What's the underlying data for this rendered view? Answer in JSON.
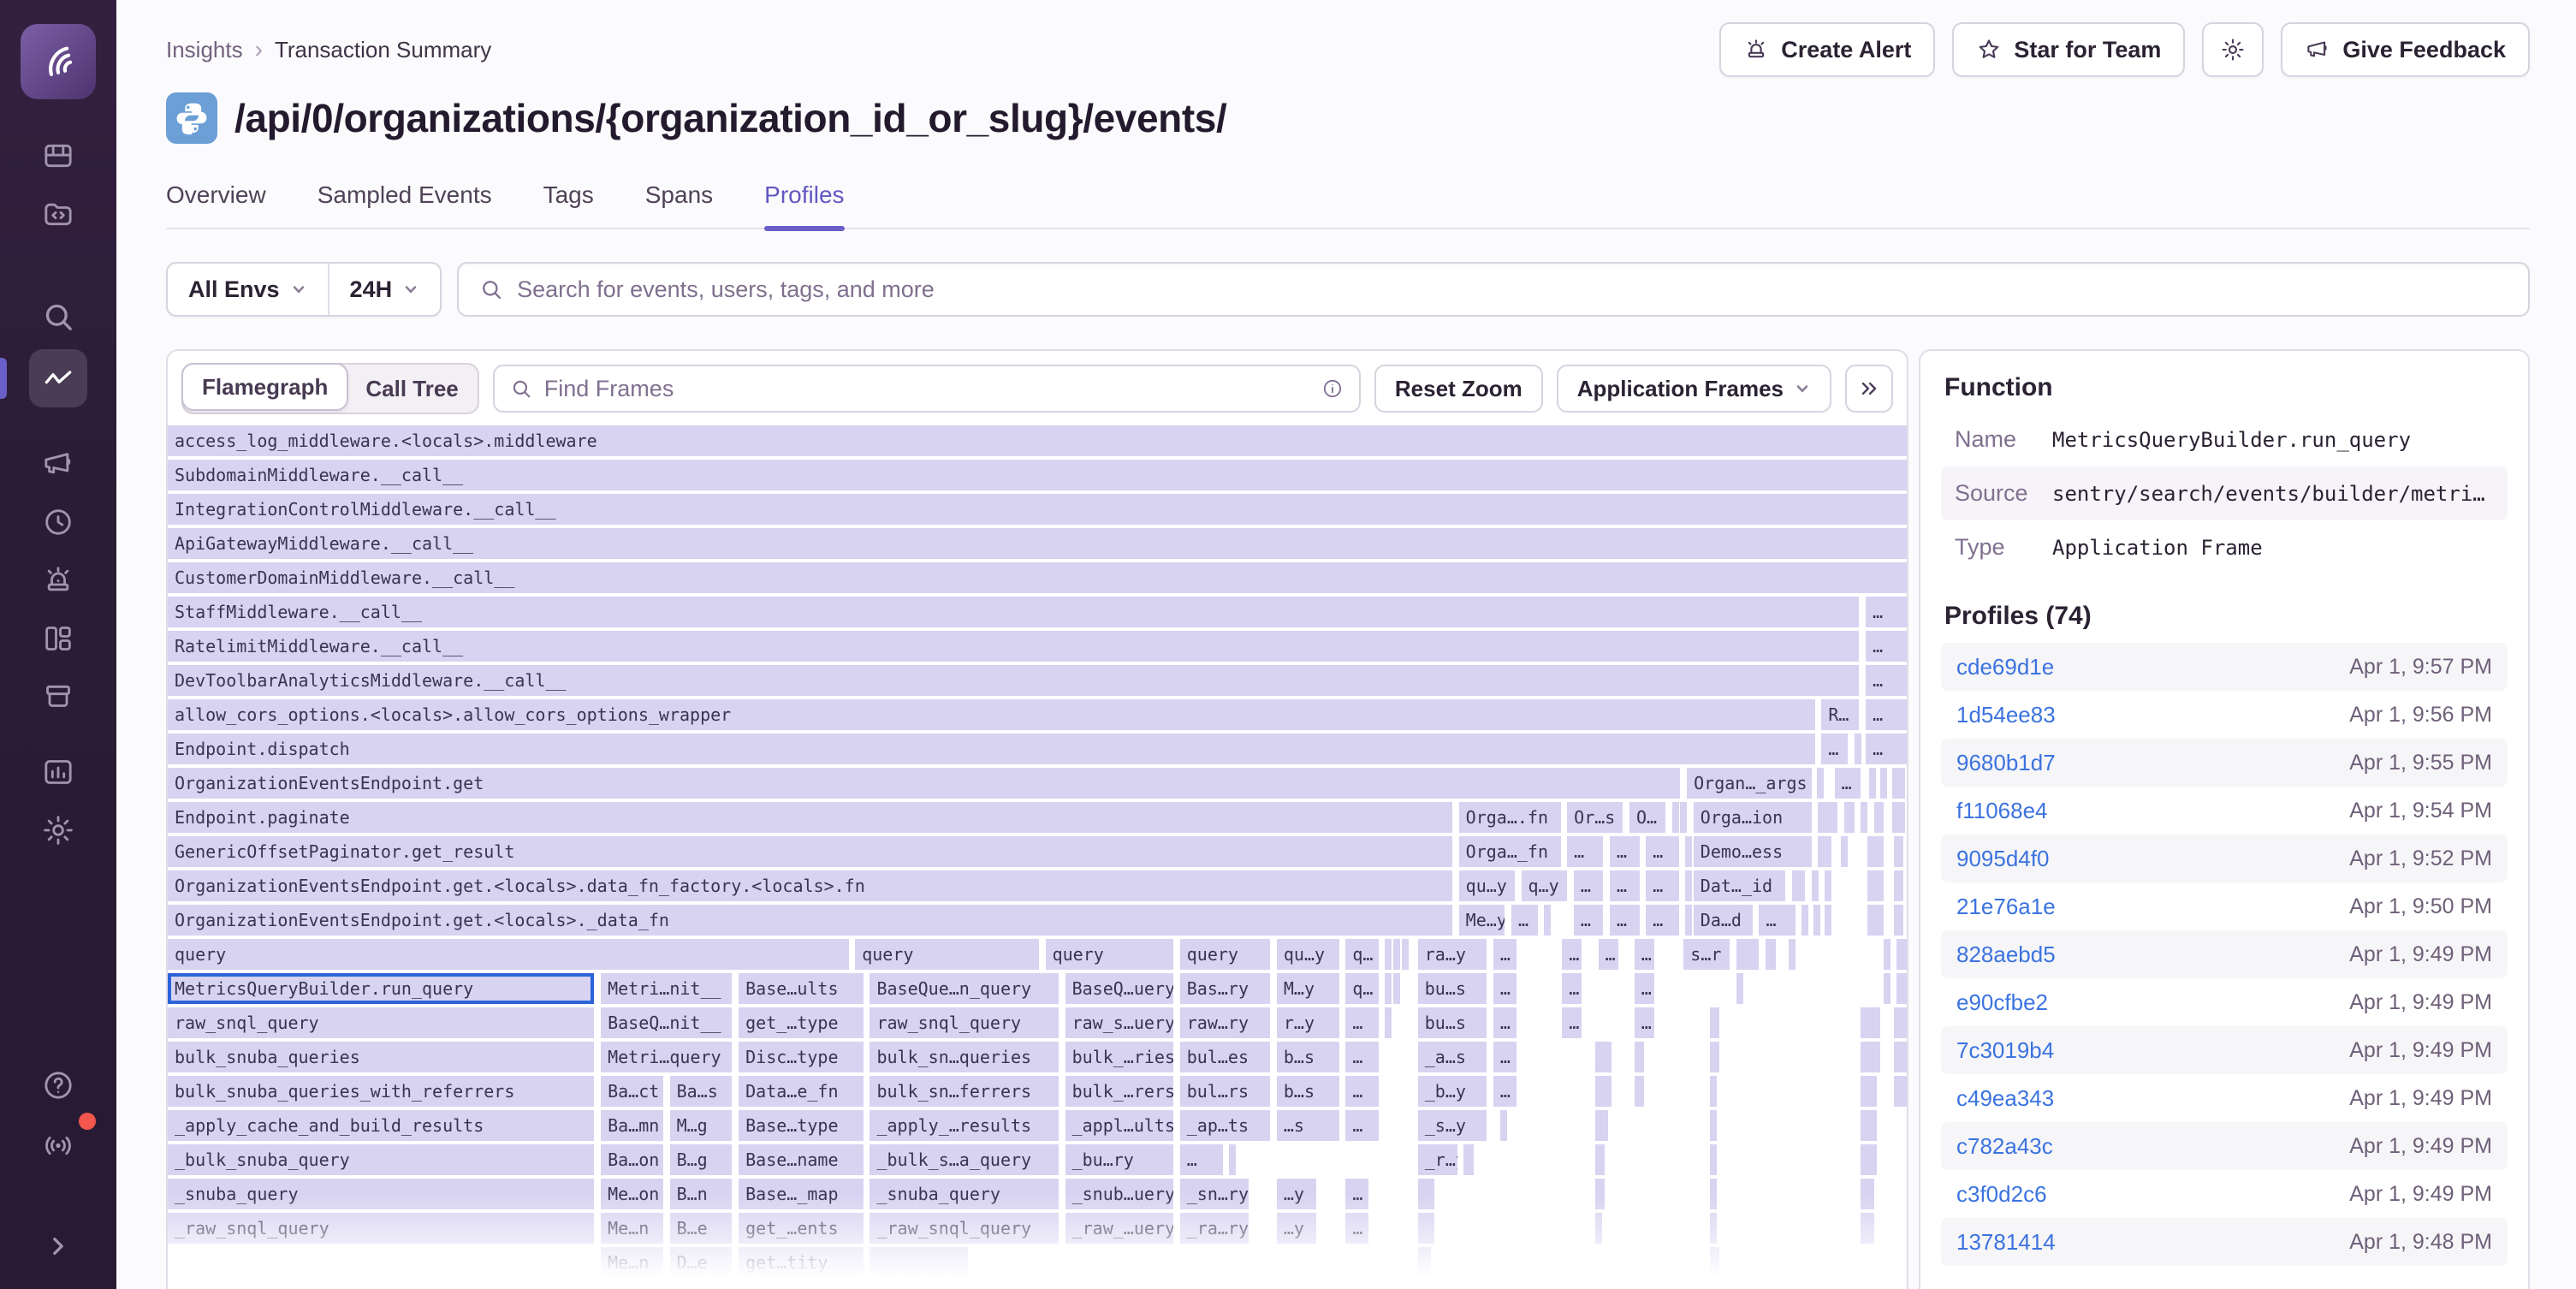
{
  "sidebar": {
    "items": [
      {
        "icon": "issues"
      },
      {
        "icon": "explore"
      },
      {
        "icon": "search"
      },
      {
        "icon": "insights",
        "active": true
      },
      {
        "icon": "feedback"
      },
      {
        "icon": "replays"
      },
      {
        "icon": "alerts"
      },
      {
        "icon": "dashboards"
      },
      {
        "icon": "releases"
      },
      {
        "icon": "stats"
      },
      {
        "icon": "settings"
      }
    ],
    "bottom": [
      {
        "icon": "help"
      },
      {
        "icon": "broadcast",
        "badge": true
      },
      {
        "icon": "expand"
      }
    ]
  },
  "header": {
    "breadcrumb": [
      "Insights",
      "Transaction Summary"
    ],
    "title": "/api/0/organizations/{organization_id_or_slug}/events/",
    "actions": [
      {
        "label": "Create Alert",
        "icon": "siren"
      },
      {
        "label": "Star for Team",
        "icon": "star"
      },
      {
        "label": "",
        "icon": "gear"
      },
      {
        "label": "Give Feedback",
        "icon": "megaphone"
      }
    ]
  },
  "tabs": [
    "Overview",
    "Sampled Events",
    "Tags",
    "Spans",
    "Profiles"
  ],
  "active_tab": "Profiles",
  "filters": {
    "env": "All Envs",
    "period": "24H",
    "search_placeholder": "Search for events, users, tags, and more"
  },
  "toolbar": {
    "view_flamegraph": "Flamegraph",
    "view_calltree": "Call Tree",
    "find_placeholder": "Find Frames",
    "reset_zoom": "Reset Zoom",
    "frames_filter": "Application Frames"
  },
  "panel": {
    "title": "Function",
    "name_label": "Name",
    "name": "MetricsQueryBuilder.run_query",
    "source_label": "Source",
    "source": "sentry/search/events/builder/metri…",
    "type_label": "Type",
    "type": "Application Frame",
    "profiles_title": "Profiles (74)",
    "profiles": [
      {
        "id": "cde69d1e",
        "time": "Apr 1, 9:57 PM"
      },
      {
        "id": "1d54ee83",
        "time": "Apr 1, 9:56 PM"
      },
      {
        "id": "9680b1d7",
        "time": "Apr 1, 9:55 PM"
      },
      {
        "id": "f11068e4",
        "time": "Apr 1, 9:54 PM"
      },
      {
        "id": "9095d4f0",
        "time": "Apr 1, 9:52 PM"
      },
      {
        "id": "21e76a1e",
        "time": "Apr 1, 9:50 PM"
      },
      {
        "id": "828aebd5",
        "time": "Apr 1, 9:49 PM"
      },
      {
        "id": "e90cfbe2",
        "time": "Apr 1, 9:49 PM"
      },
      {
        "id": "7c3019b4",
        "time": "Apr 1, 9:49 PM"
      },
      {
        "id": "c49ea343",
        "time": "Apr 1, 9:49 PM"
      },
      {
        "id": "c782a43c",
        "time": "Apr 1, 9:49 PM"
      },
      {
        "id": "c3f0d2c6",
        "time": "Apr 1, 9:49 PM"
      },
      {
        "id": "13781414",
        "time": "Apr 1, 9:48 PM"
      }
    ]
  },
  "colors": {
    "accent_purple": "#6a5fc8",
    "frame_fill": "#d7d3f1",
    "selected_frame_border": "#2b63d8",
    "link_blue": "#3b73e0",
    "sidebar_bg": "#2b1c36",
    "alert_red": "#f2564d",
    "python_blue": "#6b9fd6"
  },
  "flamegraph": {
    "unit_width": 1060,
    "rows": [
      [
        [
          "access_log_middleware.<locals>.middleware",
          0,
          1060
        ]
      ],
      [
        [
          "SubdomainMiddleware.__call__",
          0,
          1060
        ]
      ],
      [
        [
          "IntegrationControlMiddleware.__call__",
          0,
          1060
        ]
      ],
      [
        [
          "ApiGatewayMiddleware.__call__",
          0,
          1060
        ]
      ],
      [
        [
          "CustomerDomainMiddleware.__call__",
          0,
          1060
        ]
      ],
      [
        [
          "StaffMiddleware.__call__",
          0,
          1031
        ],
        [
          "…",
          1035,
          25
        ]
      ],
      [
        [
          "RatelimitMiddleware.__call__",
          0,
          1031
        ],
        [
          "…",
          1035,
          25
        ]
      ],
      [
        [
          "DevToolbarAnalyticsMiddleware.__call__",
          0,
          1031
        ],
        [
          "…",
          1035,
          25
        ]
      ],
      [
        [
          "allow_cors_options.<locals>.allow_cors_options_wrapper",
          0,
          1004
        ],
        [
          "R…",
          1008,
          23
        ],
        [
          "…",
          1035,
          25
        ]
      ],
      [
        [
          "Endpoint.dispatch",
          0,
          1004
        ],
        [
          "…",
          1008,
          16
        ],
        [
          "",
          1028,
          4
        ],
        [
          "…",
          1035,
          25
        ]
      ],
      [
        [
          "OrganizationEventsEndpoint.get",
          0,
          922
        ],
        [
          "Organ…_args",
          926,
          76
        ],
        [
          "",
          1005,
          3
        ],
        [
          "…",
          1016,
          16
        ],
        [
          "",
          1037,
          4
        ],
        [
          "",
          1044,
          3
        ],
        [
          "",
          1051,
          8
        ]
      ],
      [
        [
          "Endpoint.paginate",
          0,
          783
        ],
        [
          "Orga….fn",
          787,
          62
        ],
        [
          "Or…s",
          853,
          34
        ],
        [
          "O…",
          891,
          22
        ],
        [
          "",
          917,
          3
        ],
        [
          "",
          922,
          3
        ],
        [
          "Orga…ion",
          930,
          72
        ],
        [
          "",
          1006,
          12
        ],
        [
          "",
          1022,
          6
        ],
        [
          "",
          1032,
          4
        ],
        [
          "",
          1040,
          6
        ],
        [
          "",
          1051,
          8
        ]
      ],
      [
        [
          "GenericOffsetPaginator.get_result",
          0,
          783
        ],
        [
          "Orga…_fn",
          787,
          62
        ],
        [
          "…",
          853,
          22
        ],
        [
          "…",
          879,
          18
        ],
        [
          "…",
          901,
          20
        ],
        [
          "",
          925,
          3
        ],
        [
          "Demo…ess",
          930,
          72
        ],
        [
          "",
          1006,
          8
        ],
        [
          "",
          1020,
          4
        ],
        [
          "",
          1036,
          10
        ],
        [
          "",
          1052,
          6
        ]
      ],
      [
        [
          "OrganizationEventsEndpoint.get.<locals>.data_fn_factory.<locals>.fn",
          0,
          783
        ],
        [
          "qu…y",
          787,
          34
        ],
        [
          "q…y",
          825,
          28
        ],
        [
          "…",
          857,
          18
        ],
        [
          "…",
          879,
          18
        ],
        [
          "…",
          901,
          20
        ],
        [
          "",
          925,
          3
        ],
        [
          "Dat…_id",
          930,
          56
        ],
        [
          "",
          990,
          8
        ],
        [
          "",
          1002,
          4
        ],
        [
          "",
          1010,
          3
        ],
        [
          "",
          1036,
          10
        ],
        [
          "",
          1052,
          6
        ]
      ],
      [
        [
          "OrganizationEventsEndpoint.get.<locals>._data_fn",
          0,
          783
        ],
        [
          "Me…y",
          787,
          28
        ],
        [
          "…",
          819,
          16
        ],
        [
          "",
          839,
          3
        ],
        [
          "…",
          857,
          18
        ],
        [
          "…",
          879,
          18
        ],
        [
          "…",
          901,
          20
        ],
        [
          "",
          925,
          3
        ],
        [
          "Da…d",
          930,
          36
        ],
        [
          "…",
          970,
          22
        ],
        [
          "",
          996,
          4
        ],
        [
          "",
          1003,
          3
        ],
        [
          "",
          1010,
          3
        ],
        [
          "",
          1036,
          10
        ],
        [
          "",
          1052,
          6
        ]
      ],
      [
        [
          "query",
          0,
          415
        ],
        [
          "query",
          419,
          112
        ],
        [
          "query",
          535,
          78
        ],
        [
          "query",
          617,
          55
        ],
        [
          "qu…y",
          676,
          38
        ],
        [
          "q…",
          718,
          20
        ],
        [
          "",
          742,
          3
        ],
        [
          "",
          747,
          3
        ],
        [
          "",
          752,
          3
        ],
        [
          "ra…y",
          762,
          42
        ],
        [
          "…",
          808,
          14
        ],
        [
          "…",
          850,
          12
        ],
        [
          "…",
          872,
          12
        ],
        [
          "…",
          894,
          12
        ],
        [
          "s…r",
          924,
          28
        ],
        [
          "",
          956,
          14
        ],
        [
          "",
          974,
          6
        ],
        [
          "",
          988,
          4
        ],
        [
          "",
          1046,
          4
        ],
        [
          "",
          1054,
          6
        ]
      ],
      [
        [
          "MetricsQueryBuilder.run_query",
          0,
          260,
          1
        ],
        [
          "Metri…nit__",
          264,
          80
        ],
        [
          "Base…ults",
          348,
          76
        ],
        [
          "BaseQue…n_query",
          428,
          115
        ],
        [
          "BaseQ…uery",
          547,
          66
        ],
        [
          "Bas…ry",
          617,
          55
        ],
        [
          "M…y",
          676,
          38
        ],
        [
          "q…",
          718,
          20
        ],
        [
          "",
          742,
          3
        ],
        [
          "",
          747,
          3
        ],
        [
          "bu…s",
          762,
          42
        ],
        [
          "…",
          808,
          14
        ],
        [
          "…",
          850,
          12
        ],
        [
          "…",
          894,
          12
        ],
        [
          "",
          956,
          4
        ],
        [
          "",
          1046,
          4
        ],
        [
          "",
          1054,
          6
        ]
      ],
      [
        [
          "raw_snql_query",
          0,
          260
        ],
        [
          "BaseQ…nit__",
          264,
          80
        ],
        [
          "get_…type",
          348,
          76
        ],
        [
          "raw_snql_query",
          428,
          115
        ],
        [
          "raw_s…uery",
          547,
          66
        ],
        [
          "raw…ry",
          617,
          55
        ],
        [
          "r…y",
          676,
          38
        ],
        [
          "…",
          718,
          20
        ],
        [
          "",
          742,
          3
        ],
        [
          "bu…s",
          762,
          42
        ],
        [
          "…",
          808,
          14
        ],
        [
          "…",
          850,
          12
        ],
        [
          "…",
          894,
          12
        ],
        [
          "",
          940,
          6
        ],
        [
          "",
          1032,
          12
        ],
        [
          "",
          1052,
          8
        ]
      ],
      [
        [
          "bulk_snuba_queries",
          0,
          260
        ],
        [
          "Metri…query",
          264,
          80
        ],
        [
          "Disc…type",
          348,
          76
        ],
        [
          "bulk_sn…queries",
          428,
          115
        ],
        [
          "bulk_…ries",
          547,
          66
        ],
        [
          "bul…es",
          617,
          55
        ],
        [
          "b…s",
          676,
          38
        ],
        [
          "…",
          718,
          20
        ],
        [
          "_a…s",
          762,
          42
        ],
        [
          "…",
          808,
          14
        ],
        [
          "",
          870,
          10
        ],
        [
          "",
          894,
          6
        ],
        [
          "",
          940,
          6
        ],
        [
          "",
          1032,
          12
        ],
        [
          "",
          1052,
          8
        ]
      ],
      [
        [
          "bulk_snuba_queries_with_referrers",
          0,
          260
        ],
        [
          "Ba…ct",
          264,
          38
        ],
        [
          "Ba…s",
          306,
          38
        ],
        [
          "Data…e_fn",
          348,
          76
        ],
        [
          "bulk_sn…ferrers",
          428,
          115
        ],
        [
          "bulk_…rers",
          547,
          66
        ],
        [
          "bul…rs",
          617,
          55
        ],
        [
          "b…s",
          676,
          38
        ],
        [
          "…",
          718,
          20
        ],
        [
          "_b…y",
          762,
          42
        ],
        [
          "…",
          808,
          14
        ],
        [
          "",
          870,
          10
        ],
        [
          "",
          894,
          6
        ],
        [
          "",
          940,
          4
        ],
        [
          "",
          1032,
          10
        ],
        [
          "",
          1052,
          8
        ]
      ],
      [
        [
          "_apply_cache_and_build_results",
          0,
          260
        ],
        [
          "Ba…mn",
          264,
          38
        ],
        [
          "M…g",
          306,
          38
        ],
        [
          "Base…type",
          348,
          76
        ],
        [
          "_apply_…results",
          428,
          115
        ],
        [
          "_appl…ults",
          547,
          66
        ],
        [
          "_ap…ts",
          617,
          55
        ],
        [
          "…s",
          676,
          38
        ],
        [
          "…",
          718,
          20
        ],
        [
          "_s…y",
          762,
          42
        ],
        [
          "",
          812,
          4
        ],
        [
          "",
          870,
          8
        ],
        [
          "",
          940,
          4
        ],
        [
          "",
          1032,
          10
        ]
      ],
      [
        [
          "_bulk_snuba_query",
          0,
          260
        ],
        [
          "Ba…on",
          264,
          38
        ],
        [
          "B…g",
          306,
          38
        ],
        [
          "Base…name",
          348,
          76
        ],
        [
          "_bulk_s…a_query",
          428,
          115
        ],
        [
          "_bu…ry",
          547,
          66
        ],
        [
          "…",
          617,
          26
        ],
        [
          "",
          647,
          4
        ],
        [
          "_r…y",
          762,
          24
        ],
        [
          "",
          790,
          6
        ],
        [
          "",
          870,
          6
        ],
        [
          "",
          940,
          4
        ],
        [
          "",
          1032,
          10
        ]
      ],
      [
        [
          "_snuba_query",
          0,
          260
        ],
        [
          "Me…on",
          264,
          38
        ],
        [
          "B…n",
          306,
          38
        ],
        [
          "Base…_map",
          348,
          76
        ],
        [
          "_snuba_query",
          428,
          115
        ],
        [
          "_snub…uery",
          547,
          66
        ],
        [
          "_sn…ry",
          617,
          42
        ],
        [
          "…y",
          676,
          24
        ],
        [
          "…",
          718,
          14
        ],
        [
          "",
          762,
          10
        ],
        [
          "",
          870,
          6
        ],
        [
          "",
          940,
          4
        ],
        [
          "",
          1032,
          8
        ]
      ],
      [
        [
          "_raw_snql_query",
          0,
          260
        ],
        [
          "Me…n",
          264,
          38
        ],
        [
          "B…e",
          306,
          38
        ],
        [
          "get_…ents",
          348,
          76
        ],
        [
          "_raw_snql_query",
          428,
          115
        ],
        [
          "_raw_…uery",
          547,
          66
        ],
        [
          "_ra…ry",
          617,
          42
        ],
        [
          "…y",
          676,
          24
        ],
        [
          "…",
          718,
          14
        ],
        [
          "",
          762,
          10
        ],
        [
          "",
          870,
          4
        ],
        [
          "",
          940,
          4
        ],
        [
          "",
          1032,
          8
        ]
      ],
      [
        [
          "Me…n",
          264,
          38
        ],
        [
          "D…e",
          306,
          38
        ],
        [
          "get…tity",
          348,
          76
        ],
        [
          "",
          428,
          60
        ],
        [
          "",
          762,
          8
        ],
        [
          "",
          940,
          6
        ]
      ]
    ]
  }
}
